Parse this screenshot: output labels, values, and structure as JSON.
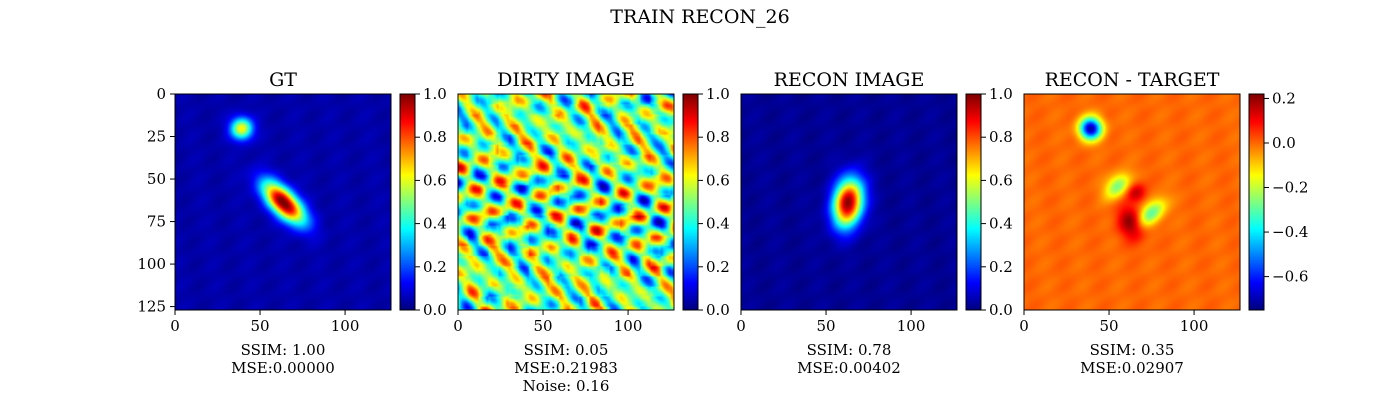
{
  "figure": {
    "suptitle": "TRAIN RECON_26"
  },
  "colors": {
    "jet": [
      "#00007f",
      "#0000ff",
      "#007fff",
      "#00ffff",
      "#7fff7f",
      "#ffff00",
      "#ff7f00",
      "#ff0000",
      "#7f0000"
    ],
    "axis": "#000000",
    "background": "#ffffff"
  },
  "chart_data": [
    {
      "type": "heatmap",
      "title": "GT",
      "xlim": [
        0,
        127
      ],
      "ylim": [
        127,
        0
      ],
      "xticks": [
        0,
        50,
        100
      ],
      "yticks": [
        0,
        25,
        50,
        75,
        100,
        125
      ],
      "colorbar": {
        "min": 0.0,
        "max": 1.0,
        "ticks": [
          "0.0",
          "0.2",
          "0.4",
          "0.6",
          "0.8",
          "1.0"
        ]
      },
      "caption": [
        "SSIM: 1.00",
        "MSE:0.00000"
      ],
      "background_value": 0.04,
      "sources": [
        {
          "x": 39,
          "y": 20,
          "sx": 4.5,
          "sy": 4.5,
          "rot": 0,
          "amp": 0.6
        },
        {
          "x": 64,
          "y": 64,
          "sx": 11,
          "sy": 5,
          "rot": 45,
          "amp": 1.0
        }
      ]
    },
    {
      "type": "heatmap",
      "title": "DIRTY IMAGE",
      "xlim": [
        0,
        127
      ],
      "ylim": [
        127,
        0
      ],
      "xticks": [
        0,
        50,
        100
      ],
      "yticks": [],
      "colorbar": {
        "min": 0.0,
        "max": 1.0,
        "ticks": [
          "0.0",
          "0.2",
          "0.4",
          "0.6",
          "0.8",
          "1.0"
        ]
      },
      "caption": [
        "SSIM: 0.05",
        "MSE:0.21983",
        "Noise: 0.16"
      ],
      "background_value": 0.5,
      "sources": []
    },
    {
      "type": "heatmap",
      "title": "RECON IMAGE",
      "xlim": [
        0,
        127
      ],
      "ylim": [
        127,
        0
      ],
      "xticks": [
        0,
        50,
        100
      ],
      "yticks": [],
      "colorbar": {
        "min": 0.0,
        "max": 1.0,
        "ticks": [
          "0.0",
          "0.2",
          "0.4",
          "0.6",
          "0.8",
          "1.0"
        ]
      },
      "caption": [
        "SSIM: 0.78",
        "MSE:0.00402"
      ],
      "background_value": 0.02,
      "sources": [
        {
          "x": 63,
          "y": 64,
          "sx": 6,
          "sy": 10,
          "rot": 10,
          "amp": 0.98
        }
      ]
    },
    {
      "type": "heatmap",
      "title": "RECON - TARGET",
      "xlim": [
        0,
        127
      ],
      "ylim": [
        127,
        0
      ],
      "xticks": [
        0,
        50,
        100
      ],
      "yticks": [],
      "colorbar": {
        "min": -0.75,
        "max": 0.22,
        "ticks": [
          "0.2",
          "0.0",
          "−0.2",
          "−0.4",
          "−0.6"
        ],
        "tick_values": [
          0.2,
          0.0,
          -0.2,
          -0.4,
          -0.6
        ]
      },
      "caption": [
        "SSIM: 0.35",
        "MSE:0.02907"
      ],
      "background_value": 0.0,
      "sources": [
        {
          "x": 39,
          "y": 20,
          "sx": 4.5,
          "sy": 4.5,
          "rot": 0,
          "amp": -0.72
        },
        {
          "x": 55,
          "y": 54,
          "sx": 4,
          "sy": 6,
          "rot": 45,
          "amp": -0.28
        },
        {
          "x": 75,
          "y": 70,
          "sx": 4,
          "sy": 7,
          "rot": 45,
          "amp": -0.3
        },
        {
          "x": 66,
          "y": 58,
          "sx": 4,
          "sy": 4,
          "rot": 0,
          "amp": 0.16
        },
        {
          "x": 63,
          "y": 76,
          "sx": 5,
          "sy": 7,
          "rot": -20,
          "amp": 0.22
        }
      ]
    }
  ]
}
